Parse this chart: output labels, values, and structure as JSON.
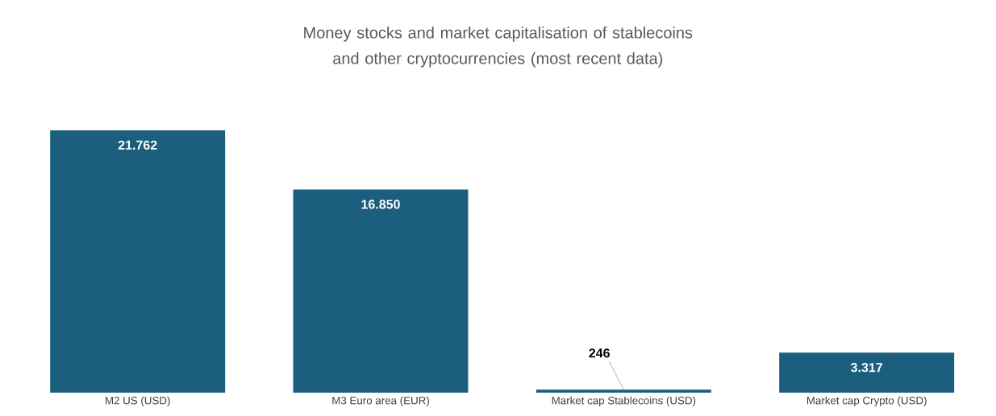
{
  "chart_data": {
    "type": "bar",
    "title": "Money stocks and market capitalisation of stablecoins and other cryptocurrencies (most recent data)",
    "categories": [
      "M2 US (USD)",
      "M3 Euro area (EUR)",
      "Market cap Stablecoins (USD)",
      "Market cap Crypto (USD)"
    ],
    "values": [
      21762,
      16850,
      246,
      3317
    ],
    "value_labels": [
      "21.762",
      "16.850",
      "246",
      "3.317"
    ],
    "color": "#1b5e7e"
  }
}
